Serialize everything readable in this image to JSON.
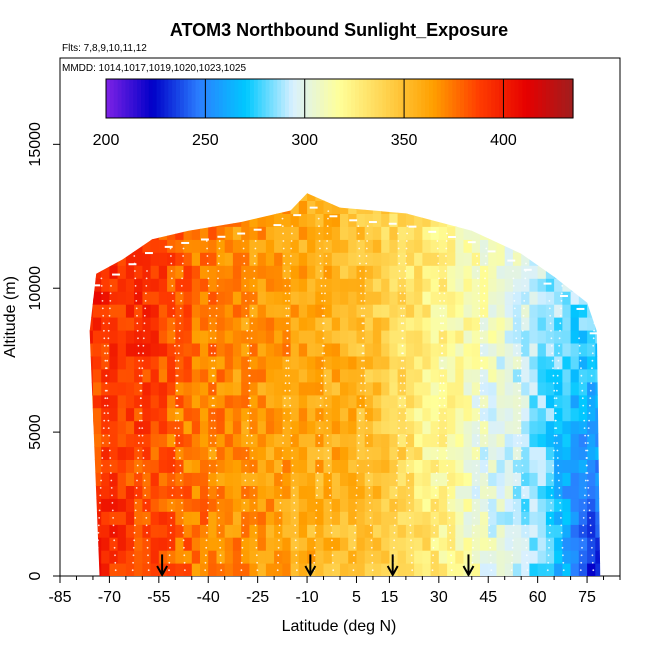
{
  "chart_data": {
    "type": "heatmap",
    "title": "ATOM3 Northbound Sunlight_Exposure",
    "subtitle_flights": "Flts: 7,8,9,10,11,12",
    "subtitle_dates": "MMDD: 1014,1017,1019,1020,1023,1025",
    "xlabel": "Latitude (deg N)",
    "ylabel": "Altitude (m)",
    "xlim": [
      -85,
      85
    ],
    "ylim": [
      0,
      18000
    ],
    "x_ticks": [
      -85,
      -70,
      -55,
      -40,
      -25,
      -10,
      5,
      15,
      30,
      45,
      60,
      75
    ],
    "x_tick_labels": [
      "-85",
      "-70",
      "-55",
      "-40",
      "-25",
      "-10",
      "5",
      "15",
      "30",
      "45",
      "60",
      "75"
    ],
    "y_ticks": [
      0,
      5000,
      10000,
      15000
    ],
    "y_tick_labels": [
      "0",
      "5000",
      "10000",
      "15000"
    ],
    "colorbar": {
      "min": 200,
      "max": 435,
      "ticks": [
        200,
        250,
        300,
        350,
        400
      ],
      "tick_labels": [
        "200",
        "250",
        "300",
        "350",
        "400"
      ],
      "colors": [
        "#7f22e6",
        "#0000c8",
        "#2b7fff",
        "#00c8ff",
        "#d8f0ff",
        "#ffff99",
        "#ffd24d",
        "#ffa000",
        "#ff3c00",
        "#e60000",
        "#a01e1e"
      ]
    },
    "profile_arrows_lat": [
      -54,
      -9,
      16,
      39
    ],
    "coverage_top_profile": [
      {
        "lat": -74,
        "alt": 10500
      },
      {
        "lat": -66,
        "alt": 11000
      },
      {
        "lat": -57,
        "alt": 11700
      },
      {
        "lat": -46,
        "alt": 12000
      },
      {
        "lat": -30,
        "alt": 12300
      },
      {
        "lat": -15,
        "alt": 12700
      },
      {
        "lat": -10,
        "alt": 13300
      },
      {
        "lat": 0,
        "alt": 12800
      },
      {
        "lat": 20,
        "alt": 12600
      },
      {
        "lat": 40,
        "alt": 12000
      },
      {
        "lat": 55,
        "alt": 11200
      },
      {
        "lat": 65,
        "alt": 10400
      },
      {
        "lat": 75,
        "alt": 9500
      },
      {
        "lat": 78,
        "alt": 8500
      }
    ],
    "field_description_points": [
      {
        "lat": -75,
        "alt": 1000,
        "value": 405
      },
      {
        "lat": -75,
        "alt": 6000,
        "value": 385
      },
      {
        "lat": -75,
        "alt": 10000,
        "value": 400
      },
      {
        "lat": -60,
        "alt": 2000,
        "value": 385
      },
      {
        "lat": -60,
        "alt": 9000,
        "value": 395
      },
      {
        "lat": -45,
        "alt": 5000,
        "value": 372
      },
      {
        "lat": -30,
        "alt": 5000,
        "value": 368
      },
      {
        "lat": -15,
        "alt": 8000,
        "value": 365
      },
      {
        "lat": 0,
        "alt": 5000,
        "value": 360
      },
      {
        "lat": 10,
        "alt": 3000,
        "value": 355
      },
      {
        "lat": 20,
        "alt": 1000,
        "value": 335
      },
      {
        "lat": 30,
        "alt": 5000,
        "value": 318
      },
      {
        "lat": 45,
        "alt": 4000,
        "value": 300
      },
      {
        "lat": 60,
        "alt": 3000,
        "value": 285
      },
      {
        "lat": 72,
        "alt": 3000,
        "value": 255
      },
      {
        "lat": 77,
        "alt": 1000,
        "value": 225
      }
    ]
  }
}
